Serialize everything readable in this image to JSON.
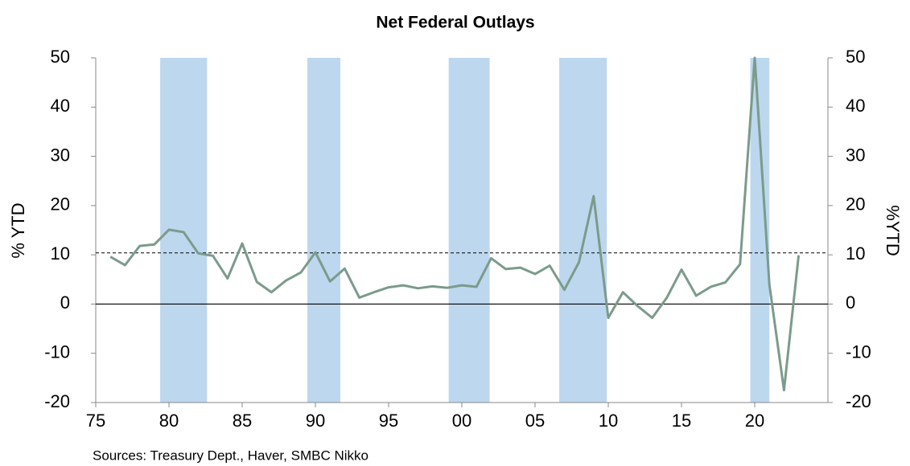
{
  "chart_data": {
    "type": "line",
    "title": "Net Federal Outlays",
    "y_label": "% YTD",
    "y2_label": "%YTD",
    "source": "Sources: Treasury Dept., Haver, SMBC Nikko",
    "x": [
      1976,
      1977,
      1978,
      1979,
      1980,
      1981,
      1982,
      1983,
      1984,
      1985,
      1986,
      1987,
      1988,
      1989,
      1990,
      1991,
      1992,
      1993,
      1994,
      1995,
      1996,
      1997,
      1998,
      1999,
      2000,
      2001,
      2002,
      2003,
      2004,
      2005,
      2006,
      2007,
      2008,
      2009,
      2010,
      2011,
      2012,
      2013,
      2014,
      2015,
      2016,
      2017,
      2018,
      2019,
      2020,
      2021,
      2022,
      2023
    ],
    "series": [
      {
        "name": "Net Federal Outlays",
        "color": "#7b9b8b",
        "values": [
          9.6,
          7.9,
          11.8,
          12.1,
          15.1,
          14.6,
          10.3,
          9.8,
          5.2,
          12.3,
          4.5,
          2.4,
          4.8,
          6.4,
          10.5,
          4.6,
          7.2,
          1.3,
          2.4,
          3.4,
          3.8,
          3.2,
          3.6,
          3.3,
          3.8,
          3.5,
          9.3,
          7.1,
          7.4,
          6.1,
          7.8,
          2.9,
          8.5,
          21.9,
          -2.8,
          2.4,
          -0.4,
          -2.8,
          1.3,
          7.0,
          1.7,
          3.5,
          4.4,
          8.1,
          50,
          4.0,
          -17.5,
          9.9
        ]
      }
    ],
    "reference_line": 10.4,
    "shaded_periods": [
      [
        1979.4,
        1982.6
      ],
      [
        1989.45,
        1991.7
      ],
      [
        1999.1,
        2001.9
      ],
      [
        2006.65,
        2009.9
      ],
      [
        2019.7,
        2021.0
      ]
    ],
    "shade_color": "#bdd7ee",
    "xlim": [
      1975,
      2025
    ],
    "xticks": [
      {
        "value": 1975,
        "label": "75"
      },
      {
        "value": 1980,
        "label": "80"
      },
      {
        "value": 1985,
        "label": "85"
      },
      {
        "value": 1990,
        "label": "90"
      },
      {
        "value": 1995,
        "label": "95"
      },
      {
        "value": 2000,
        "label": "00"
      },
      {
        "value": 2005,
        "label": "05"
      },
      {
        "value": 2010,
        "label": "10"
      },
      {
        "value": 2015,
        "label": "15"
      },
      {
        "value": 2020,
        "label": "20"
      }
    ],
    "ylim": [
      -20,
      50
    ],
    "yticks": [
      -20,
      -10,
      0,
      10,
      20,
      30,
      40,
      50
    ],
    "y2lim": [
      -20,
      50
    ],
    "y2ticks": [
      -20,
      -10,
      0,
      10,
      20,
      30,
      40,
      50
    ]
  }
}
